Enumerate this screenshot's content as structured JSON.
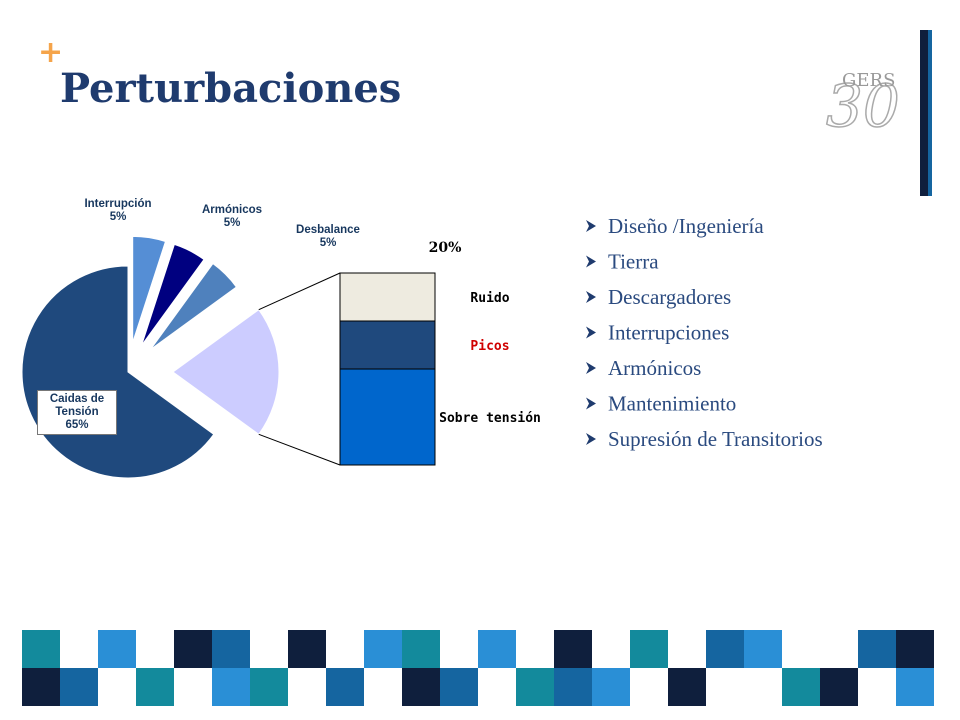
{
  "slide_title": "Perturbaciones",
  "logo": "GERS",
  "bullets": [
    "Diseño /Ingeniería",
    "Tierra",
    "Descargadores",
    "Interrupciones",
    "Armónicos",
    "Mantenimiento",
    "Supresión de Transitorios"
  ],
  "chart_data": {
    "type": "pie",
    "categories": [
      "Interrupción",
      "Armónicos",
      "Desbalance",
      null,
      "Caidas de Tensión"
    ],
    "values": [
      5,
      5,
      5,
      20,
      65
    ],
    "value_labels": [
      "5%",
      "5%",
      "5%",
      "20%",
      "65%"
    ],
    "colors": [
      "#558ed5",
      "#000080",
      "#4f81bd",
      "#ccccff",
      "#1f497d"
    ],
    "breakdown": {
      "type": "stacked-bar",
      "categories": [
        "Ruido",
        "Picos",
        "Sobre tensión"
      ],
      "values": [
        5,
        5,
        10
      ],
      "colors": [
        "#eeebe0",
        "#1f497d",
        "#0066cc"
      ],
      "label_colors": [
        "#000000",
        "#d00000",
        "#000000"
      ]
    }
  }
}
